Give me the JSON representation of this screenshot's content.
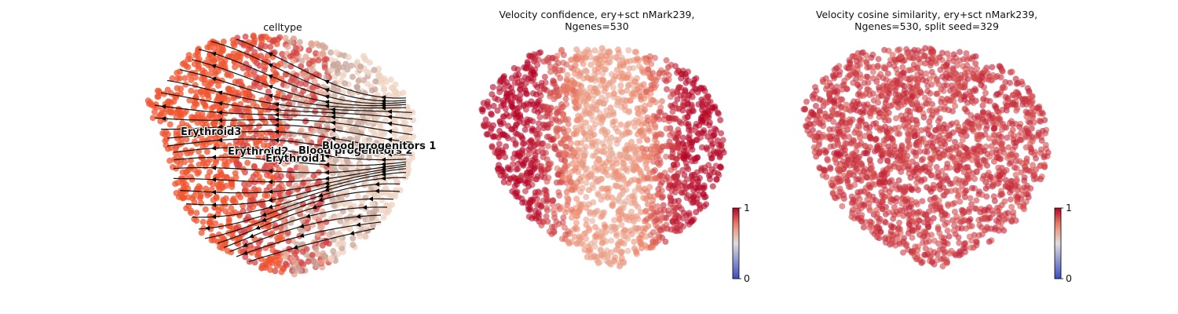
{
  "chart_data": [
    {
      "type": "scatter",
      "title": "celltype",
      "has_velocity_streamlines": true,
      "axes_visible": false,
      "clusters": [
        {
          "name": "Erythroid3",
          "color": "#f05530"
        },
        {
          "name": "Erythroid2",
          "color": "#e7a48f"
        },
        {
          "name": "Blood progenitors 2",
          "color": "#d64545"
        },
        {
          "name": "Erythroid1",
          "color": "#c8a59a"
        },
        {
          "name": "Blood progenitors 1",
          "color": "#efd3c2"
        }
      ],
      "labels_on_plot": [
        "Erythroid3",
        "Erythroid2",
        "Blood progenitors 2",
        "Erythroid1",
        "Blood progenitors 1"
      ]
    },
    {
      "type": "scatter",
      "title": "Velocity confidence, ery+sct nMark239,\nNgenes=530",
      "axes_visible": false,
      "colorbar": {
        "min": 0,
        "max": 1,
        "tick_labels": [
          "0",
          "1"
        ],
        "colormap": "coolwarm"
      },
      "value_pattern": "high (~0.9–1.0) in left and right regions, lower (~0.7) in central band"
    },
    {
      "type": "scatter",
      "title": "Velocity cosine similarity, ery+sct nMark239,\nNgenes=530, split seed=329",
      "axes_visible": false,
      "colorbar": {
        "min": 0,
        "max": 1,
        "tick_labels": [
          "0",
          "1"
        ],
        "colormap": "coolwarm"
      },
      "value_pattern": "uniformly high (~0.85–0.95)"
    }
  ],
  "colors": {
    "high": "#b40426",
    "mid_high": "#d65244",
    "mid": "#e7745b",
    "low_mid": "#dddddd",
    "low": "#3b4cc0"
  }
}
